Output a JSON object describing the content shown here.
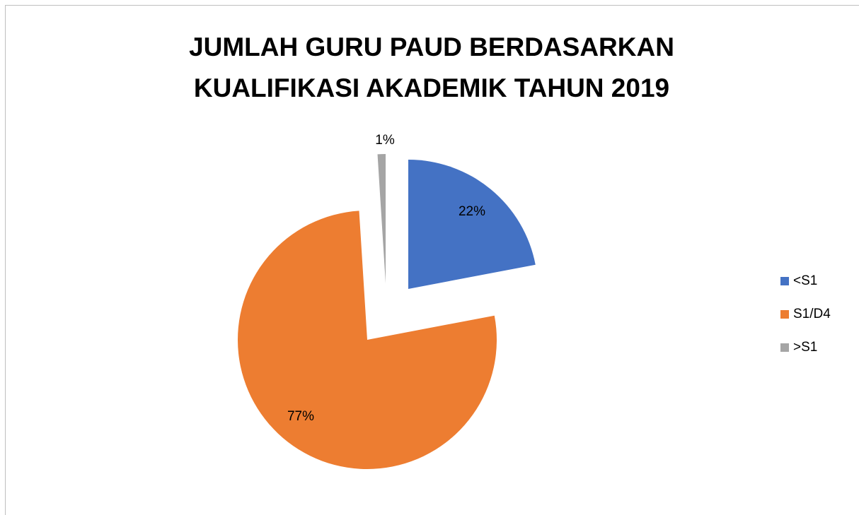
{
  "chart_data": {
    "type": "pie",
    "title": "JUMLAH GURU PAUD BERDASARKAN KUALIFIKASI AKADEMIK TAHUN 2019",
    "categories": [
      "<S1",
      "S1/D4",
      ">S1"
    ],
    "values": [
      22,
      77,
      1
    ],
    "value_labels": [
      "22%",
      "77%",
      "1%"
    ],
    "colors": [
      "#4472c4",
      "#ed7d31",
      "#a5a5a5"
    ],
    "legend": "right"
  }
}
